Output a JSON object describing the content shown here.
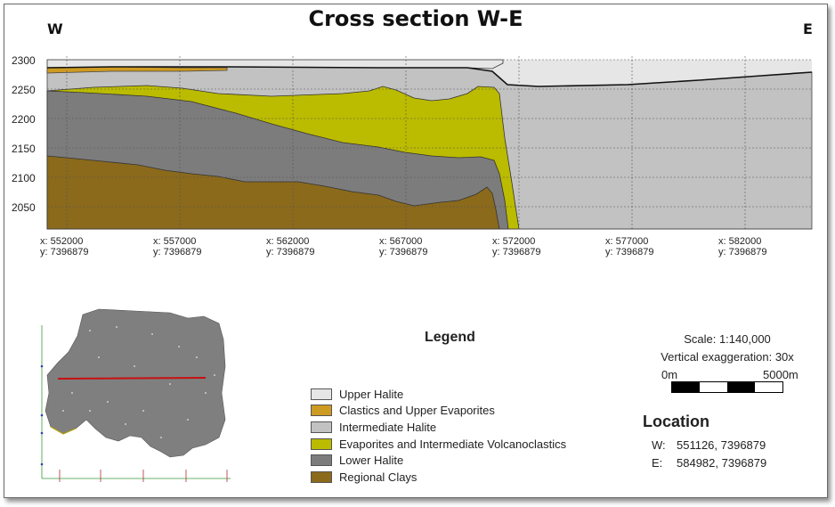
{
  "title": "Cross section W-E",
  "west_label": "W",
  "east_label": "E",
  "y_ticks": [
    "2300",
    "2250",
    "2200",
    "2150",
    "2100",
    "2050"
  ],
  "x_ticks": [
    {
      "x": "x: 552000",
      "y": "y: 7396879"
    },
    {
      "x": "x: 557000",
      "y": "y: 7396879"
    },
    {
      "x": "x: 562000",
      "y": "y: 7396879"
    },
    {
      "x": "x: 567000",
      "y": "y: 7396879"
    },
    {
      "x": "x: 572000",
      "y": "y: 7396879"
    },
    {
      "x": "x: 577000",
      "y": "y: 7396879"
    },
    {
      "x": "x: 582000",
      "y": "y: 7396879"
    }
  ],
  "legend": {
    "title": "Legend",
    "items": [
      {
        "label": "Upper Halite",
        "color": "#e6e6e6"
      },
      {
        "label": "Clastics and Upper Evaporites",
        "color": "#cd9a22"
      },
      {
        "label": "Intermediate Halite",
        "color": "#c2c2c2"
      },
      {
        "label": "Evaporites and Intermediate Volcanoclastics",
        "color": "#bbbb00"
      },
      {
        "label": "Lower Halite",
        "color": "#7c7c7c"
      },
      {
        "label": "Regional Clays",
        "color": "#8b6a1c"
      }
    ]
  },
  "scale": {
    "scale_text": "Scale: 1:140,000",
    "exaggeration_text": "Vertical exaggeration: 30x",
    "bar_start": "0m",
    "bar_end": "5000m"
  },
  "location": {
    "title": "Location",
    "w_key": "W:",
    "w_value": "551126, 7396879",
    "e_key": "E:",
    "e_value": "584982, 7396879"
  },
  "colors": {
    "section_line": "#c81010",
    "map_fill": "#7f7f7f",
    "grid": "#555555"
  }
}
